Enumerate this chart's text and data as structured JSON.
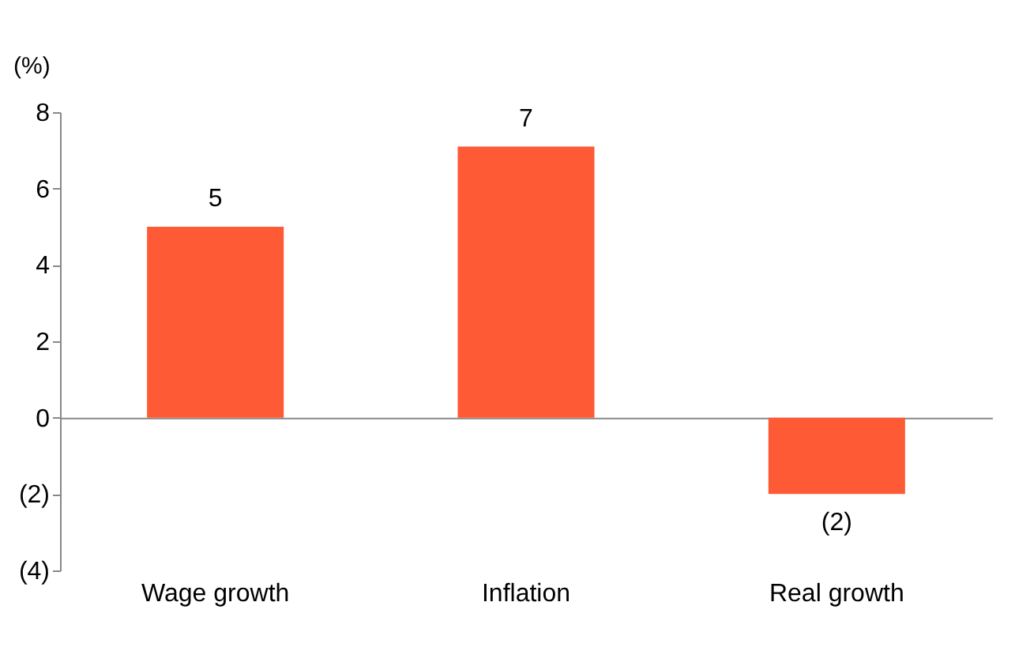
{
  "chart_data": {
    "type": "bar",
    "ylabel": "(%)",
    "categories": [
      "Wage growth",
      "Inflation",
      "Real growth"
    ],
    "values": [
      5,
      7.1,
      -2.0
    ],
    "value_labels": [
      "5",
      "7",
      "(2)"
    ],
    "color": "#ff5a36",
    "ylim": [
      -4,
      8
    ],
    "yticks": [
      {
        "value": -4,
        "label": "(4)"
      },
      {
        "value": -2,
        "label": "(2)"
      },
      0,
      2,
      4,
      6,
      8
    ]
  }
}
